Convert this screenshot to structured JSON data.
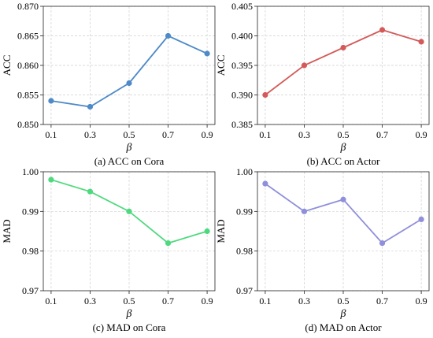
{
  "chart_data": [
    {
      "type": "line",
      "caption": "(a) ACC on Cora",
      "xlabel": "β",
      "ylabel": "ACC",
      "x": [
        0.1,
        0.3,
        0.5,
        0.7,
        0.9
      ],
      "x_ticklabels": [
        "0.1",
        "0.3",
        "0.5",
        "0.7",
        "0.9"
      ],
      "ylim": [
        0.85,
        0.87
      ],
      "yticks": [
        0.85,
        0.855,
        0.86,
        0.865,
        0.87
      ],
      "ytick_labels": [
        "0.850",
        "0.855",
        "0.860",
        "0.865",
        "0.870"
      ],
      "grid": true,
      "color": "#4e8ac8",
      "series": [
        {
          "values": [
            0.854,
            0.853,
            0.857,
            0.865,
            0.862
          ]
        }
      ]
    },
    {
      "type": "line",
      "caption": "(b) ACC on Actor",
      "xlabel": "β",
      "ylabel": "ACC",
      "x": [
        0.1,
        0.3,
        0.5,
        0.7,
        0.9
      ],
      "x_ticklabels": [
        "0.1",
        "0.3",
        "0.5",
        "0.7",
        "0.9"
      ],
      "ylim": [
        0.385,
        0.405
      ],
      "yticks": [
        0.385,
        0.39,
        0.395,
        0.4,
        0.405
      ],
      "ytick_labels": [
        "0.385",
        "0.390",
        "0.395",
        "0.400",
        "0.405"
      ],
      "grid": true,
      "color": "#d45a5a",
      "series": [
        {
          "values": [
            0.39,
            0.395,
            0.398,
            0.401,
            0.399
          ]
        }
      ]
    },
    {
      "type": "line",
      "caption": "(c) MAD on Cora",
      "xlabel": "β",
      "ylabel": "MAD",
      "x": [
        0.1,
        0.3,
        0.5,
        0.7,
        0.9
      ],
      "x_ticklabels": [
        "0.1",
        "0.3",
        "0.5",
        "0.7",
        "0.9"
      ],
      "ylim": [
        0.97,
        1.0
      ],
      "yticks": [
        0.97,
        0.98,
        0.99,
        1.0
      ],
      "ytick_labels": [
        "0.97",
        "0.98",
        "0.99",
        "1.00"
      ],
      "grid": true,
      "color": "#4fd97f",
      "series": [
        {
          "values": [
            0.998,
            0.995,
            0.99,
            0.982,
            0.985
          ]
        }
      ]
    },
    {
      "type": "line",
      "caption": "(d) MAD on Actor",
      "xlabel": "β",
      "ylabel": "MAD",
      "x": [
        0.1,
        0.3,
        0.5,
        0.7,
        0.9
      ],
      "x_ticklabels": [
        "0.1",
        "0.3",
        "0.5",
        "0.7",
        "0.9"
      ],
      "ylim": [
        0.97,
        1.0
      ],
      "yticks": [
        0.97,
        0.98,
        0.99,
        1.0
      ],
      "ytick_labels": [
        "0.97",
        "0.98",
        "0.99",
        "1.00"
      ],
      "grid": true,
      "color": "#8f8fdc",
      "series": [
        {
          "values": [
            0.997,
            0.99,
            0.993,
            0.982,
            0.988
          ]
        }
      ]
    }
  ]
}
